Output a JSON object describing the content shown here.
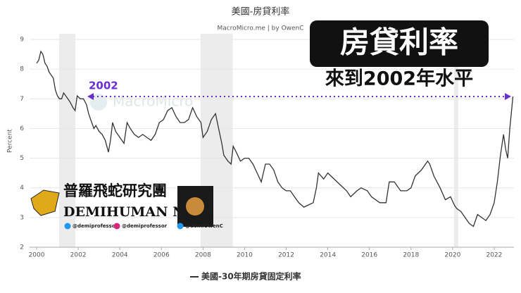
{
  "chart_data": {
    "type": "line",
    "title": "美國-房貸利率",
    "subtitle": "MacroMicro.me | by OwenC",
    "y_label": "Percent",
    "watermark": "MacroMicro",
    "x": [
      2000.0,
      2000.1,
      2000.2,
      2000.3,
      2000.4,
      2000.5,
      2000.6,
      2000.7,
      2000.8,
      2000.9,
      2001.0,
      2001.1,
      2001.2,
      2001.3,
      2001.4,
      2001.5,
      2001.6,
      2001.75,
      2001.85,
      2001.95,
      2002.1,
      2002.25,
      2002.4,
      2002.5,
      2002.6,
      2002.75,
      2002.85,
      2003.0,
      2003.15,
      2003.3,
      2003.45,
      2003.55,
      2003.65,
      2003.8,
      2004.0,
      2004.2,
      2004.35,
      2004.5,
      2004.7,
      2004.9,
      2005.1,
      2005.3,
      2005.5,
      2005.7,
      2005.9,
      2006.1,
      2006.3,
      2006.5,
      2006.7,
      2006.9,
      2007.1,
      2007.3,
      2007.5,
      2007.7,
      2007.9,
      2008.0,
      2008.2,
      2008.4,
      2008.6,
      2008.75,
      2008.9,
      2009.0,
      2009.2,
      2009.35,
      2009.45,
      2009.6,
      2009.8,
      2010.0,
      2010.2,
      2010.4,
      2010.6,
      2010.8,
      2011.0,
      2011.2,
      2011.4,
      2011.6,
      2011.8,
      2012.0,
      2012.2,
      2012.4,
      2012.6,
      2012.85,
      2013.0,
      2013.3,
      2013.45,
      2013.55,
      2013.8,
      2014.0,
      2014.3,
      2014.6,
      2014.9,
      2015.1,
      2015.4,
      2015.6,
      2015.9,
      2016.1,
      2016.5,
      2016.8,
      2016.95,
      2017.2,
      2017.5,
      2017.8,
      2018.0,
      2018.2,
      2018.5,
      2018.8,
      2018.9,
      2019.1,
      2019.4,
      2019.65,
      2019.9,
      2020.1,
      2020.2,
      2020.4,
      2020.6,
      2020.8,
      2021.0,
      2021.2,
      2021.4,
      2021.6,
      2021.8,
      2022.0,
      2022.15,
      2022.3,
      2022.45,
      2022.55,
      2022.65,
      2022.75,
      2022.85,
      2022.9
    ],
    "series": [
      {
        "name": "美國-30年期房貸固定利率",
        "color": "#333333",
        "values": [
          8.2,
          8.3,
          8.6,
          8.5,
          8.2,
          8.1,
          7.9,
          7.8,
          7.7,
          7.3,
          7.1,
          7.0,
          7.0,
          7.2,
          7.1,
          7.0,
          6.9,
          6.7,
          6.6,
          7.1,
          7.0,
          7.0,
          6.8,
          6.5,
          6.3,
          6.0,
          6.1,
          5.9,
          5.8,
          5.6,
          5.2,
          5.6,
          6.2,
          5.9,
          5.7,
          5.5,
          6.2,
          6.0,
          5.8,
          5.7,
          5.8,
          5.7,
          5.6,
          5.8,
          6.2,
          6.3,
          6.6,
          6.7,
          6.4,
          6.2,
          6.2,
          6.3,
          6.7,
          6.4,
          6.2,
          5.7,
          5.9,
          6.3,
          6.5,
          6.0,
          5.5,
          5.1,
          4.9,
          4.8,
          5.4,
          5.2,
          4.9,
          5.0,
          5.0,
          4.8,
          4.5,
          4.2,
          4.8,
          4.8,
          4.6,
          4.2,
          4.0,
          3.9,
          3.9,
          3.7,
          3.5,
          3.35,
          3.4,
          3.5,
          4.0,
          4.5,
          4.3,
          4.5,
          4.3,
          4.1,
          3.9,
          3.7,
          3.9,
          4.0,
          3.9,
          3.7,
          3.5,
          3.5,
          4.2,
          4.2,
          3.9,
          3.9,
          4.0,
          4.4,
          4.6,
          4.9,
          4.8,
          4.4,
          4.0,
          3.6,
          3.7,
          3.4,
          3.3,
          3.2,
          3.0,
          2.8,
          2.7,
          3.1,
          3.0,
          2.9,
          3.1,
          3.5,
          4.2,
          5.1,
          5.8,
          5.3,
          5.0,
          6.0,
          6.7,
          7.08
        ]
      }
    ],
    "shaded_ranges": [
      [
        2001.08,
        2001.86
      ],
      [
        2007.88,
        2009.43
      ],
      [
        2020.07,
        2020.27
      ]
    ],
    "xlim": [
      1999.66,
      2022.95
    ],
    "ylim": [
      2,
      9
    ],
    "xticks": [
      2000,
      2002,
      2004,
      2006,
      2008,
      2010,
      2012,
      2014,
      2016,
      2018,
      2020,
      2022
    ],
    "yticks": [
      2,
      3,
      4,
      5,
      6,
      7,
      8,
      9
    ],
    "grid": true,
    "annotation": "2002"
  },
  "overlay": {
    "headline": "房貸利率",
    "subheadline": "來到2002年水平",
    "brand": "普羅飛蛇研究團",
    "brand_en": "DEMIHUMAN NFT",
    "handles": [
      "@demiprofessor",
      "@demiprofessor",
      "@demiOwenC"
    ]
  }
}
